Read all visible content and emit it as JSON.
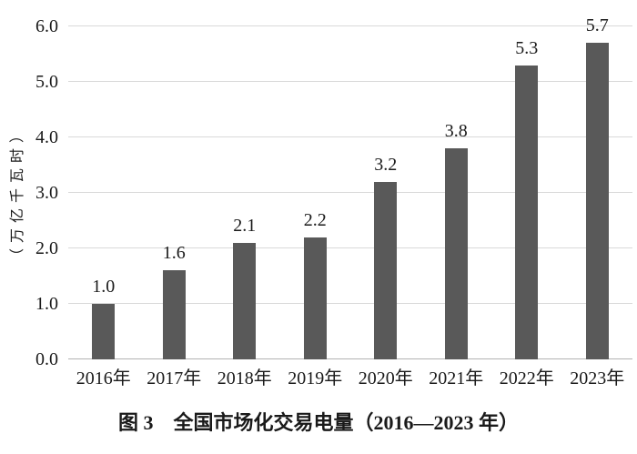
{
  "figure": {
    "caption": "图 3　全国市场化交易电量（2016—2023 年）"
  },
  "chart_data": {
    "type": "bar",
    "title": "图 3　全国市场化交易电量（2016—2023 年）",
    "categories": [
      "2016年",
      "2017年",
      "2018年",
      "2019年",
      "2020年",
      "2021年",
      "2022年",
      "2023年"
    ],
    "values": [
      1.0,
      1.6,
      2.1,
      2.2,
      3.2,
      3.8,
      5.3,
      5.7
    ],
    "value_labels": [
      "1.0",
      "1.6",
      "2.1",
      "2.2",
      "3.2",
      "3.8",
      "5.3",
      "5.7"
    ],
    "xlabel": "",
    "ylabel": "（万亿千瓦时）",
    "ylim": [
      0.0,
      6.0
    ],
    "y_ticks": [
      0.0,
      1.0,
      2.0,
      3.0,
      4.0,
      5.0,
      6.0
    ],
    "y_tick_labels": [
      "0.0",
      "1.0",
      "2.0",
      "3.0",
      "4.0",
      "5.0",
      "6.0"
    ],
    "grid": "horizontal",
    "legend": "none",
    "colors": {
      "bar": "#595959",
      "gridline": "#d9d9d9",
      "baseline": "#b3b3b3",
      "text": "#1a1a1a",
      "background": "#ffffff"
    }
  }
}
